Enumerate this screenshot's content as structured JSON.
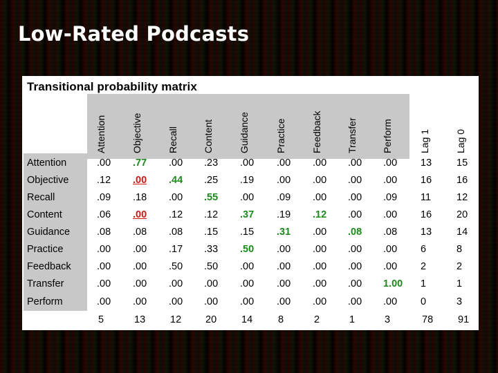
{
  "slide": {
    "title": "Low-Rated Podcasts"
  },
  "matrix": {
    "title": "Transitional probability matrix",
    "columns": [
      "Attention",
      "Objective",
      "Recall",
      "Content",
      "Guidance",
      "Practice",
      "Feedback",
      "Transfer",
      "Perform",
      "Lag 1",
      "Lag 0"
    ],
    "rows": [
      {
        "label": "Attention",
        "cells": [
          ".00",
          ".77",
          ".00",
          ".23",
          ".00",
          ".00",
          ".00",
          ".00",
          ".00",
          "13",
          "15"
        ]
      },
      {
        "label": "Objective",
        "cells": [
          ".12",
          ".00",
          ".44",
          ".25",
          ".19",
          ".00",
          ".00",
          ".00",
          ".00",
          "16",
          "16"
        ]
      },
      {
        "label": "Recall",
        "cells": [
          ".09",
          ".18",
          ".00",
          ".55",
          ".00",
          ".09",
          ".00",
          ".00",
          ".09",
          "11",
          "12"
        ]
      },
      {
        "label": "Content",
        "cells": [
          ".06",
          ".00",
          ".12",
          ".12",
          ".37",
          ".19",
          ".12",
          ".00",
          ".00",
          "16",
          "20"
        ]
      },
      {
        "label": "Guidance",
        "cells": [
          ".08",
          ".08",
          ".08",
          ".15",
          ".15",
          ".31",
          ".00",
          ".08",
          ".08",
          "13",
          "14"
        ]
      },
      {
        "label": "Practice",
        "cells": [
          ".00",
          ".00",
          ".17",
          ".33",
          ".50",
          ".00",
          ".00",
          ".00",
          ".00",
          "6",
          "8"
        ]
      },
      {
        "label": "Feedback",
        "cells": [
          ".00",
          ".00",
          ".50",
          ".50",
          ".00",
          ".00",
          ".00",
          ".00",
          ".00",
          "2",
          "2"
        ]
      },
      {
        "label": "Transfer",
        "cells": [
          ".00",
          ".00",
          ".00",
          ".00",
          ".00",
          ".00",
          ".00",
          ".00",
          "1.00",
          "1",
          "1"
        ]
      },
      {
        "label": "Perform",
        "cells": [
          ".00",
          ".00",
          ".00",
          ".00",
          ".00",
          ".00",
          ".00",
          ".00",
          ".00",
          "0",
          "3"
        ]
      }
    ],
    "totals": [
      "5",
      "13",
      "12",
      "20",
      "14",
      "8",
      "2",
      "1",
      "3",
      "78",
      "91"
    ],
    "highlights": {
      "green": [
        [
          0,
          1
        ],
        [
          1,
          2
        ],
        [
          2,
          3
        ],
        [
          3,
          4
        ],
        [
          3,
          6
        ],
        [
          4,
          5
        ],
        [
          4,
          7
        ],
        [
          5,
          4
        ],
        [
          7,
          8
        ]
      ],
      "red": [
        [
          1,
          1
        ],
        [
          3,
          1
        ]
      ]
    },
    "colors": {
      "green": "#1e8a1e",
      "red": "#d01818",
      "header_band": "#c8c8c8"
    }
  }
}
